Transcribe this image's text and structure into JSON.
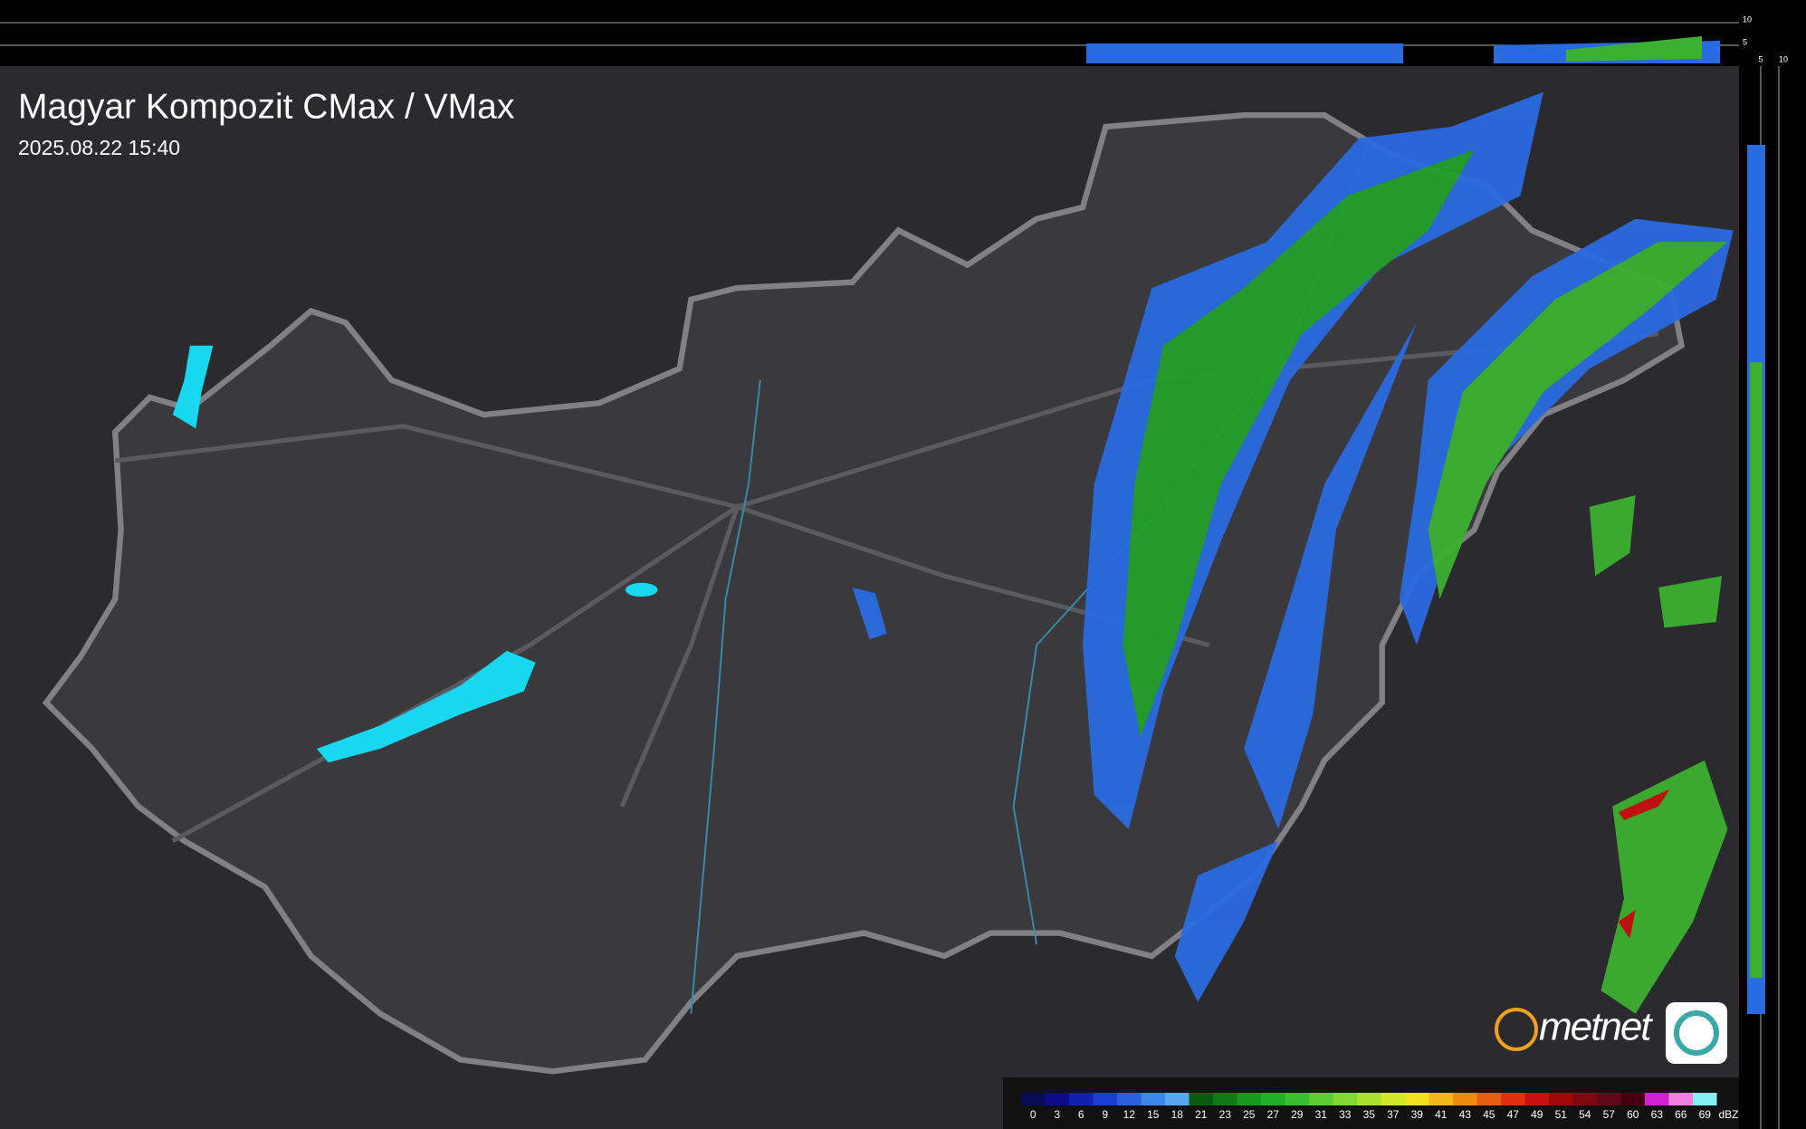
{
  "header": {
    "title": "Magyar Kompozit CMax / VMax",
    "timestamp": "2025.08.22 15:40"
  },
  "profile_axes": {
    "top": [
      "10",
      "5"
    ],
    "right": [
      "5",
      "10"
    ]
  },
  "logo": "metnet",
  "legend": {
    "unit": "dBZ",
    "scale": [
      {
        "value": 0,
        "color": "#0b0b55"
      },
      {
        "value": 3,
        "color": "#0c0c8a"
      },
      {
        "value": 6,
        "color": "#1020b0"
      },
      {
        "value": 9,
        "color": "#1a3fd0"
      },
      {
        "value": 12,
        "color": "#2a60e0"
      },
      {
        "value": 15,
        "color": "#3d85ea"
      },
      {
        "value": 18,
        "color": "#58a8f0"
      },
      {
        "value": 21,
        "color": "#0a5a10"
      },
      {
        "value": 23,
        "color": "#107a18"
      },
      {
        "value": 25,
        "color": "#189a20"
      },
      {
        "value": 27,
        "color": "#22b02a"
      },
      {
        "value": 29,
        "color": "#38c030"
      },
      {
        "value": 31,
        "color": "#5ccc30"
      },
      {
        "value": 33,
        "color": "#80d830"
      },
      {
        "value": 35,
        "color": "#a8e030"
      },
      {
        "value": 37,
        "color": "#d0e828"
      },
      {
        "value": 39,
        "color": "#f0e020"
      },
      {
        "value": 41,
        "color": "#f0b818"
      },
      {
        "value": 43,
        "color": "#ee8a10"
      },
      {
        "value": 45,
        "color": "#e85e10"
      },
      {
        "value": 47,
        "color": "#e03010"
      },
      {
        "value": 49,
        "color": "#c81010"
      },
      {
        "value": 51,
        "color": "#a00808"
      },
      {
        "value": 54,
        "color": "#800810"
      },
      {
        "value": 57,
        "color": "#600818"
      },
      {
        "value": 60,
        "color": "#400010"
      },
      {
        "value": 63,
        "color": "#d020d0"
      },
      {
        "value": 66,
        "color": "#f080e0"
      },
      {
        "value": 69,
        "color": "#80f0f0"
      }
    ]
  }
}
